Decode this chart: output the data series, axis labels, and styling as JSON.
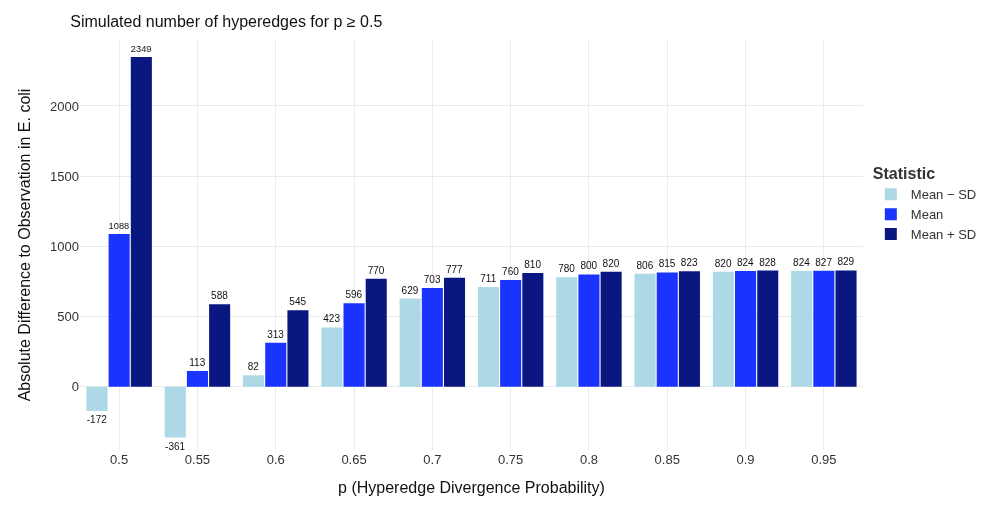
{
  "chart_data": {
    "type": "bar",
    "title": "Simulated number of hyperedges for p ≥ 0.5",
    "xlabel": "p (Hyperedge Divergence Probability)",
    "ylabel": "Absolute Difference to Observation in E. coli",
    "legend_title": "Statistic",
    "categories": [
      "0.5",
      "0.55",
      "0.6",
      "0.65",
      "0.7",
      "0.75",
      "0.8",
      "0.85",
      "0.9",
      "0.95"
    ],
    "series": [
      {
        "name": "Mean − SD",
        "color": "#add8e6",
        "values": [
          -172,
          -361,
          82,
          423,
          629,
          711,
          780,
          806,
          820,
          824
        ]
      },
      {
        "name": "Mean",
        "color": "#1a33ff",
        "values": [
          1088,
          113,
          313,
          596,
          703,
          760,
          800,
          815,
          824,
          827
        ]
      },
      {
        "name": "Mean + SD",
        "color": "#0b1780",
        "values": [
          2349,
          588,
          545,
          770,
          777,
          810,
          820,
          823,
          828,
          829
        ]
      }
    ],
    "ylim": [
      -450,
      2470
    ],
    "yticks": [
      0,
      500,
      1000,
      1500,
      2000
    ],
    "grid": true,
    "legend": "right",
    "data_labels": true
  }
}
